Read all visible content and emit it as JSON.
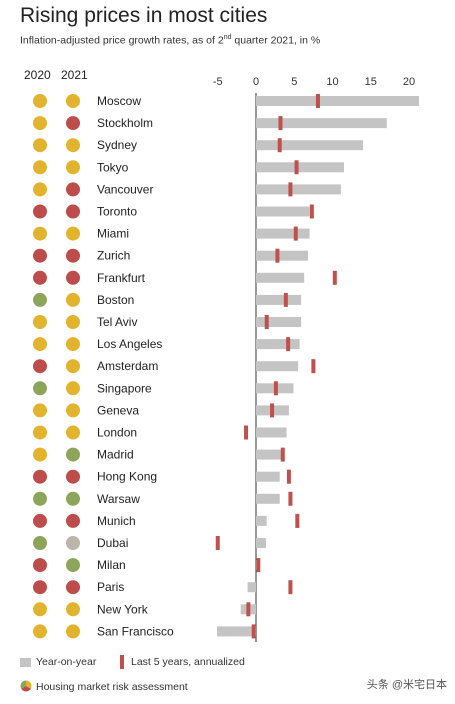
{
  "header": {
    "title": "Rising prices in most cities",
    "subtitle_pre": "Inflation-adjusted price growth rates, as of 2",
    "subtitle_sup": "nd",
    "subtitle_post": " quarter 2021, in %"
  },
  "columns": {
    "year1": "2020",
    "year2": "2021"
  },
  "colors": {
    "bar": "#c4c4c4",
    "marker": "#c0504d",
    "risk": {
      "yellow": "#e2b32c",
      "red": "#bd4d4a",
      "green": "#8da55a",
      "grey": "#bcb5aa"
    }
  },
  "chart_data": {
    "type": "bar",
    "orientation": "horizontal",
    "xlim": [
      -5,
      21
    ],
    "xticks": [
      -5,
      0,
      5,
      10,
      15,
      20
    ],
    "categories": [
      "Moscow",
      "Stockholm",
      "Sydney",
      "Tokyo",
      "Vancouver",
      "Toronto",
      "Miami",
      "Zurich",
      "Frankfurt",
      "Boston",
      "Tel Aviv",
      "Los Angeles",
      "Amsterdam",
      "Singapore",
      "Geneva",
      "London",
      "Madrid",
      "Hong Kong",
      "Warsaw",
      "Munich",
      "Dubai",
      "Milan",
      "Paris",
      "New York",
      "San Francisco"
    ],
    "series": [
      {
        "name": "Year-on-year",
        "values": [
          21.3,
          17.1,
          14.0,
          11.5,
          11.1,
          7.0,
          7.0,
          6.8,
          6.3,
          5.9,
          5.9,
          5.7,
          5.5,
          4.9,
          4.3,
          4.0,
          3.3,
          3.1,
          3.1,
          1.4,
          1.3,
          0.4,
          -1.1,
          -2.0,
          -5.1
        ]
      },
      {
        "name": "Last 5 years, annualized",
        "values": [
          8.1,
          3.2,
          3.1,
          5.3,
          4.5,
          7.3,
          5.2,
          2.8,
          10.3,
          3.9,
          1.4,
          4.2,
          7.5,
          2.6,
          2.1,
          -1.3,
          3.5,
          4.3,
          4.5,
          5.4,
          -5.0,
          0.3,
          4.5,
          -1.0,
          -0.3
        ]
      }
    ],
    "risk_2020": [
      "yellow",
      "yellow",
      "yellow",
      "yellow",
      "yellow",
      "red",
      "yellow",
      "red",
      "red",
      "green",
      "yellow",
      "yellow",
      "red",
      "green",
      "yellow",
      "yellow",
      "yellow",
      "red",
      "green",
      "red",
      "green",
      "red",
      "red",
      "yellow",
      "yellow"
    ],
    "risk_2021": [
      "yellow",
      "red",
      "yellow",
      "yellow",
      "red",
      "red",
      "yellow",
      "red",
      "red",
      "yellow",
      "yellow",
      "yellow",
      "yellow",
      "yellow",
      "yellow",
      "yellow",
      "green",
      "red",
      "green",
      "red",
      "grey",
      "green",
      "red",
      "yellow",
      "yellow"
    ],
    "legend": {
      "bar_label": "Year-on-year",
      "marker_label": "Last 5 years, annualized",
      "risk_label": "Housing market risk assessment"
    }
  },
  "watermark": "头条 @米宅日本"
}
